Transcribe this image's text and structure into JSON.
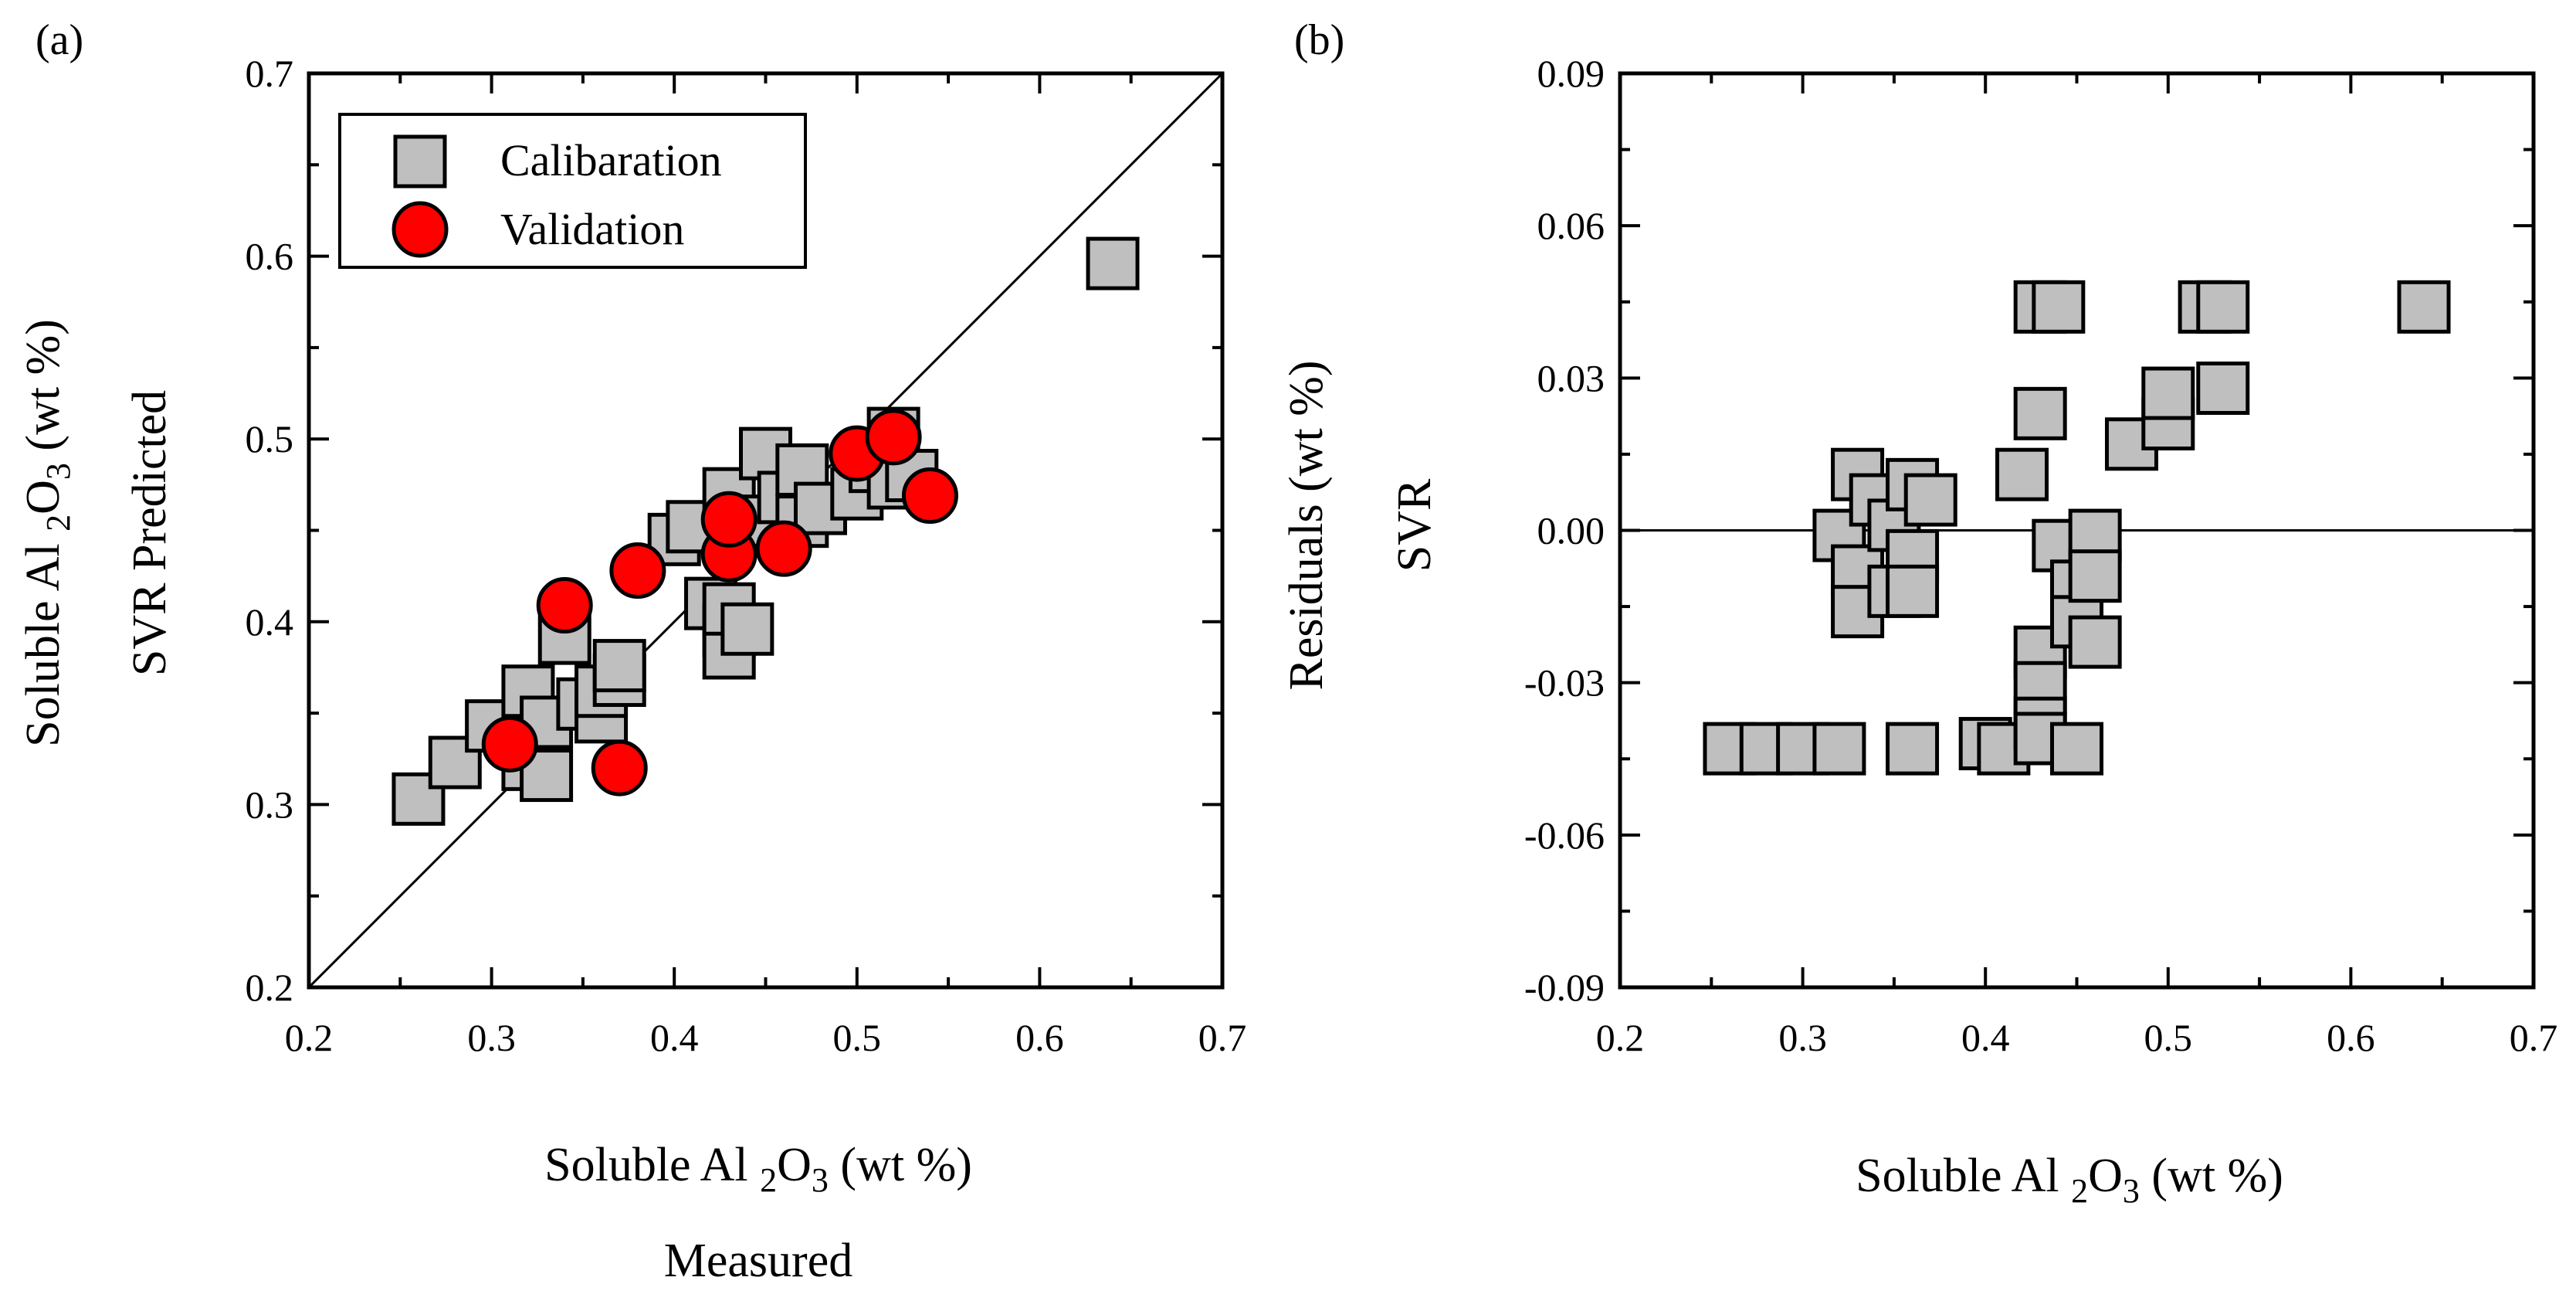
{
  "chart_data": [
    {
      "panel_label": "(a)",
      "type": "scatter",
      "xlabel": {
        "pre": "Soluble Al ",
        "sub1": "2",
        "mid": "O",
        "sub2": "3",
        "post": " (wt %)",
        "line2": "Measured"
      },
      "ylabel": {
        "line1": "Soluble Al ",
        "sub1": "2",
        "mid": "O",
        "sub2": "3",
        "post": " (wt %)",
        "line2": "SVR Predicted"
      },
      "xlim": [
        0.2,
        0.7
      ],
      "ylim": [
        0.2,
        0.7
      ],
      "xticks": [
        "0.2",
        "0.3",
        "0.4",
        "0.5",
        "0.6",
        "0.7"
      ],
      "yticks": [
        "0.2",
        "0.3",
        "0.4",
        "0.5",
        "0.6",
        "0.7"
      ],
      "identity_line": true,
      "legend": {
        "position": "top-left",
        "entries": [
          "Calibaration",
          "Validation"
        ]
      },
      "series": [
        {
          "name": "Calibaration",
          "marker": "square",
          "color": "#bfbfbf",
          "points": [
            [
              0.26,
              0.303
            ],
            [
              0.28,
              0.323
            ],
            [
              0.3,
              0.343
            ],
            [
              0.32,
              0.322
            ],
            [
              0.33,
              0.316
            ],
            [
              0.32,
              0.362
            ],
            [
              0.33,
              0.345
            ],
            [
              0.34,
              0.391
            ],
            [
              0.35,
              0.355
            ],
            [
              0.36,
              0.348
            ],
            [
              0.36,
              0.362
            ],
            [
              0.37,
              0.368
            ],
            [
              0.37,
              0.376
            ],
            [
              0.4,
              0.445
            ],
            [
              0.41,
              0.452
            ],
            [
              0.42,
              0.41
            ],
            [
              0.43,
              0.395
            ],
            [
              0.43,
              0.383
            ],
            [
              0.43,
              0.407
            ],
            [
              0.44,
              0.396
            ],
            [
              0.43,
              0.47
            ],
            [
              0.44,
              0.455
            ],
            [
              0.45,
              0.492
            ],
            [
              0.46,
              0.468
            ],
            [
              0.47,
              0.483
            ],
            [
              0.47,
              0.455
            ],
            [
              0.48,
              0.462
            ],
            [
              0.5,
              0.47
            ],
            [
              0.51,
              0.485
            ],
            [
              0.52,
              0.503
            ],
            [
              0.52,
              0.476
            ],
            [
              0.53,
              0.48
            ],
            [
              0.64,
              0.596
            ]
          ]
        },
        {
          "name": "Validation",
          "marker": "circle",
          "color": "#ff0000",
          "points": [
            [
              0.31,
              0.333
            ],
            [
              0.34,
              0.409
            ],
            [
              0.37,
              0.32
            ],
            [
              0.38,
              0.428
            ],
            [
              0.43,
              0.437
            ],
            [
              0.43,
              0.456
            ],
            [
              0.46,
              0.44
            ],
            [
              0.5,
              0.492
            ],
            [
              0.52,
              0.501
            ],
            [
              0.54,
              0.469
            ]
          ]
        }
      ]
    },
    {
      "panel_label": "(b)",
      "type": "scatter",
      "xlabel": {
        "pre": "Soluble Al ",
        "sub1": "2",
        "mid": "O",
        "sub2": "3",
        "post": " (wt %)"
      },
      "ylabel": {
        "line1": "Residuals (wt %)",
        "line2": "SVR"
      },
      "xlim": [
        0.2,
        0.7
      ],
      "ylim": [
        -0.09,
        0.09
      ],
      "xticks": [
        "0.2",
        "0.3",
        "0.4",
        "0.5",
        "0.6",
        "0.7"
      ],
      "yticks": [
        "-0.09",
        "-0.06",
        "-0.03",
        "0.00",
        "0.03",
        "0.06",
        "0.09"
      ],
      "zero_line": true,
      "series": [
        {
          "name": "Residuals",
          "marker": "square",
          "color": "#bfbfbf",
          "points": [
            [
              0.26,
              -0.043
            ],
            [
              0.28,
              -0.043
            ],
            [
              0.3,
              -0.043
            ],
            [
              0.32,
              -0.043
            ],
            [
              0.36,
              -0.043
            ],
            [
              0.32,
              -0.001
            ],
            [
              0.33,
              0.011
            ],
            [
              0.33,
              -0.008
            ],
            [
              0.33,
              -0.016
            ],
            [
              0.34,
              0.006
            ],
            [
              0.35,
              0.001
            ],
            [
              0.35,
              -0.012
            ],
            [
              0.36,
              0.009
            ],
            [
              0.36,
              -0.005
            ],
            [
              0.36,
              -0.012
            ],
            [
              0.37,
              0.006
            ],
            [
              0.4,
              -0.042
            ],
            [
              0.41,
              -0.043
            ],
            [
              0.42,
              0.011
            ],
            [
              0.43,
              0.044
            ],
            [
              0.44,
              0.044
            ],
            [
              0.43,
              0.023
            ],
            [
              0.43,
              -0.024
            ],
            [
              0.43,
              -0.031
            ],
            [
              0.43,
              -0.038
            ],
            [
              0.43,
              -0.041
            ],
            [
              0.44,
              -0.003
            ],
            [
              0.45,
              -0.011
            ],
            [
              0.45,
              -0.018
            ],
            [
              0.46,
              -0.001
            ],
            [
              0.46,
              -0.009
            ],
            [
              0.46,
              -0.022
            ],
            [
              0.45,
              -0.043
            ],
            [
              0.48,
              0.017
            ],
            [
              0.5,
              0.021
            ],
            [
              0.5,
              0.027
            ],
            [
              0.52,
              0.044
            ],
            [
              0.53,
              0.044
            ],
            [
              0.53,
              0.028
            ],
            [
              0.64,
              0.044
            ]
          ]
        }
      ]
    }
  ]
}
